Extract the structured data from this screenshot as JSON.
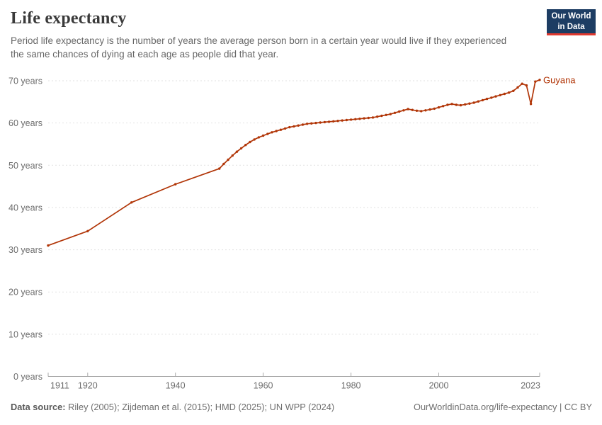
{
  "header": {
    "title": "Life expectancy",
    "subtitle": "Period life expectancy is the number of years the average person born in a certain year would live if they experienced the same chances of dying at each age as people did that year.",
    "logo": {
      "line1": "Our World",
      "line2": "in Data"
    }
  },
  "footer": {
    "datasource_label": "Data source:",
    "datasource_text": "Riley (2005); Zijdeman et al. (2015); HMD (2025); UN WPP (2024)",
    "citation": "OurWorldinData.org/life-expectancy | CC BY"
  },
  "colors": {
    "series": "#b13507",
    "logo_bg": "#1d3d63",
    "logo_underline": "#e0392f",
    "grid": "#e2e2e2",
    "axis": "#a9a9a9",
    "tick_text": "#6d6d6d",
    "title_text": "#3a3a3a",
    "subtitle_text": "#676767"
  },
  "chart_data": {
    "type": "line",
    "title": "Life expectancy",
    "unit": "years",
    "xlim": [
      1911,
      2023
    ],
    "ylim": [
      0,
      70
    ],
    "x_ticks": [
      1911,
      1920,
      1940,
      1960,
      1980,
      2000,
      2023
    ],
    "y_ticks": [
      0,
      10,
      20,
      30,
      40,
      50,
      60,
      70
    ],
    "y_tick_suffix": " years",
    "grid": true,
    "legend": "end-of-line entity label",
    "point_markers": true,
    "series": [
      {
        "name": "Guyana",
        "color": "#b13507",
        "points": [
          [
            1911,
            31.0
          ],
          [
            1920,
            34.4
          ],
          [
            1930,
            41.2
          ],
          [
            1940,
            45.5
          ],
          [
            1950,
            49.2
          ],
          [
            1951,
            50.3
          ],
          [
            1952,
            51.3
          ],
          [
            1953,
            52.3
          ],
          [
            1954,
            53.2
          ],
          [
            1955,
            54.0
          ],
          [
            1956,
            54.8
          ],
          [
            1957,
            55.5
          ],
          [
            1958,
            56.1
          ],
          [
            1959,
            56.6
          ],
          [
            1960,
            57.0
          ],
          [
            1961,
            57.4
          ],
          [
            1962,
            57.8
          ],
          [
            1963,
            58.1
          ],
          [
            1964,
            58.4
          ],
          [
            1965,
            58.7
          ],
          [
            1966,
            59.0
          ],
          [
            1967,
            59.2
          ],
          [
            1968,
            59.4
          ],
          [
            1969,
            59.6
          ],
          [
            1970,
            59.8
          ],
          [
            1971,
            59.9
          ],
          [
            1972,
            60.0
          ],
          [
            1973,
            60.1
          ],
          [
            1974,
            60.2
          ],
          [
            1975,
            60.3
          ],
          [
            1976,
            60.4
          ],
          [
            1977,
            60.5
          ],
          [
            1978,
            60.6
          ],
          [
            1979,
            60.7
          ],
          [
            1980,
            60.8
          ],
          [
            1981,
            60.9
          ],
          [
            1982,
            61.0
          ],
          [
            1983,
            61.1
          ],
          [
            1984,
            61.2
          ],
          [
            1985,
            61.3
          ],
          [
            1986,
            61.5
          ],
          [
            1987,
            61.7
          ],
          [
            1988,
            61.9
          ],
          [
            1989,
            62.1
          ],
          [
            1990,
            62.4
          ],
          [
            1991,
            62.7
          ],
          [
            1992,
            63.0
          ],
          [
            1993,
            63.3
          ],
          [
            1994,
            63.1
          ],
          [
            1995,
            62.9
          ],
          [
            1996,
            62.8
          ],
          [
            1997,
            63.0
          ],
          [
            1998,
            63.2
          ],
          [
            1999,
            63.4
          ],
          [
            2000,
            63.7
          ],
          [
            2001,
            64.0
          ],
          [
            2002,
            64.3
          ],
          [
            2003,
            64.5
          ],
          [
            2004,
            64.3
          ],
          [
            2005,
            64.2
          ],
          [
            2006,
            64.4
          ],
          [
            2007,
            64.6
          ],
          [
            2008,
            64.8
          ],
          [
            2009,
            65.1
          ],
          [
            2010,
            65.4
          ],
          [
            2011,
            65.7
          ],
          [
            2012,
            66.0
          ],
          [
            2013,
            66.3
          ],
          [
            2014,
            66.6
          ],
          [
            2015,
            66.9
          ],
          [
            2016,
            67.2
          ],
          [
            2017,
            67.6
          ],
          [
            2018,
            68.4
          ],
          [
            2019,
            69.3
          ],
          [
            2020,
            68.9
          ],
          [
            2021,
            64.5
          ],
          [
            2022,
            69.8
          ],
          [
            2023,
            70.2
          ]
        ]
      }
    ]
  }
}
